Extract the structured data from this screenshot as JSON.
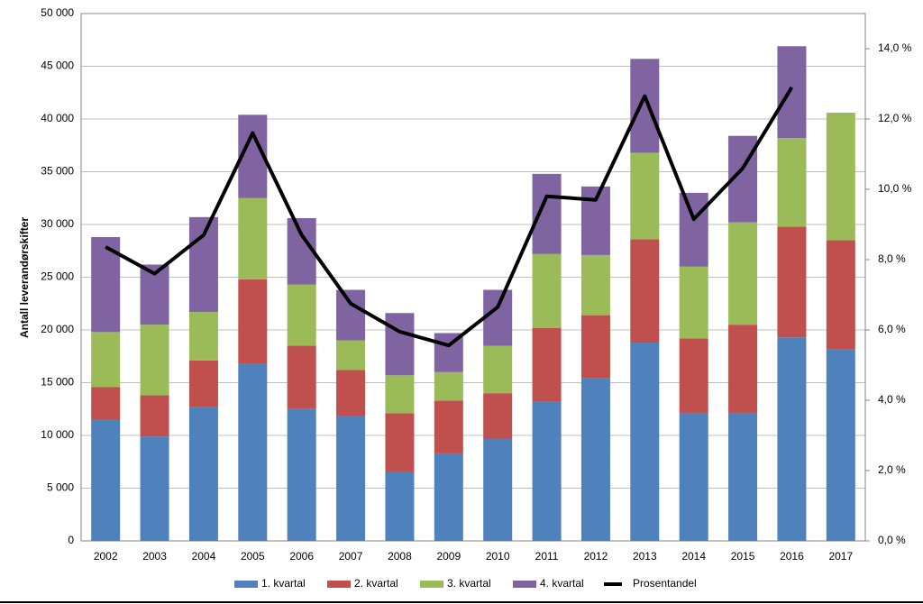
{
  "chart_data": {
    "type": "bar",
    "y_label": "Antall leverandørskifter",
    "categories": [
      "2002",
      "2003",
      "2004",
      "2005",
      "2006",
      "2007",
      "2008",
      "2009",
      "2010",
      "2011",
      "2012",
      "2013",
      "2014",
      "2015",
      "2016",
      "2017"
    ],
    "series": [
      {
        "name": "1. kvartal",
        "color": "#4f81bd",
        "values": [
          11500,
          9900,
          12700,
          16800,
          12500,
          11800,
          6500,
          8300,
          9700,
          13200,
          15400,
          18800,
          12100,
          12100,
          19300,
          18200
        ]
      },
      {
        "name": "2. kvartal",
        "color": "#c0504d",
        "values": [
          3100,
          3900,
          4400,
          8000,
          6000,
          4400,
          5600,
          5000,
          4300,
          7000,
          6000,
          9800,
          7100,
          8400,
          10500,
          10300
        ]
      },
      {
        "name": "3. kvartal",
        "color": "#9bbb59",
        "values": [
          5200,
          6700,
          4600,
          7700,
          5800,
          2800,
          3600,
          2700,
          4500,
          7000,
          5700,
          8200,
          6800,
          9700,
          8400,
          12100
        ]
      },
      {
        "name": "4. kvartal",
        "color": "#8064a2",
        "values": [
          9000,
          5700,
          9000,
          7900,
          6300,
          4800,
          5900,
          3700,
          5300,
          7600,
          6500,
          8900,
          7000,
          8200,
          8700,
          null
        ]
      },
      {
        "name": "Prosentandel",
        "color": "#000000",
        "type": "line",
        "axis": "y2",
        "values": [
          8.36,
          7.6,
          8.7,
          11.6,
          8.7,
          6.75,
          5.95,
          5.56,
          6.65,
          9.8,
          9.7,
          12.65,
          9.15,
          10.6,
          12.9,
          null
        ]
      }
    ],
    "ylim": [
      0,
      50000
    ],
    "yticks": [
      {
        "value": 0,
        "label": "0"
      },
      {
        "value": 5000,
        "label": "5 000"
      },
      {
        "value": 10000,
        "label": "10 000"
      },
      {
        "value": 15000,
        "label": "15 000"
      },
      {
        "value": 20000,
        "label": "20 000"
      },
      {
        "value": 25000,
        "label": "25 000"
      },
      {
        "value": 30000,
        "label": "30 000"
      },
      {
        "value": 35000,
        "label": "35 000"
      },
      {
        "value": 40000,
        "label": "40 000"
      },
      {
        "value": 45000,
        "label": "45 000"
      },
      {
        "value": 50000,
        "label": "50 000"
      }
    ],
    "y2lim": [
      0,
      15
    ],
    "y2ticks": [
      {
        "value": 0,
        "label": "0,0 %"
      },
      {
        "value": 2,
        "label": "2,0 %"
      },
      {
        "value": 4,
        "label": "4,0 %"
      },
      {
        "value": 6,
        "label": "6,0 %"
      },
      {
        "value": 8,
        "label": "8,0 %"
      },
      {
        "value": 10,
        "label": "10,0 %"
      },
      {
        "value": 12,
        "label": "12,0 %"
      },
      {
        "value": 14,
        "label": "14,0 %"
      }
    ],
    "grid": true,
    "stacked": true,
    "legend": "bottom"
  }
}
